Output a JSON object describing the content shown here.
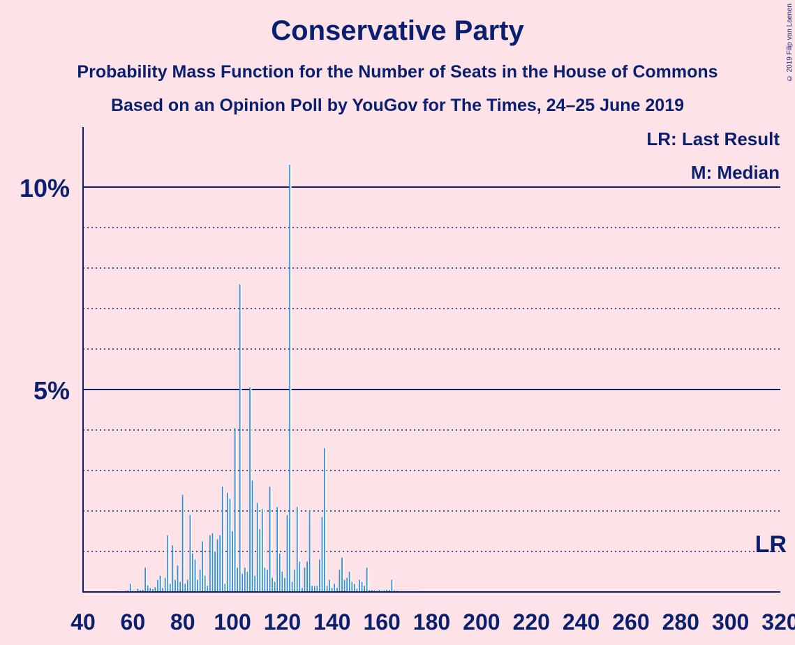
{
  "title": "Conservative Party",
  "subtitle1": "Probability Mass Function for the Number of Seats in the House of Commons",
  "subtitle2": "Based on an Opinion Poll by YouGov for The Times, 24–25 June 2019",
  "copyright": "© 2019 Filip van Laenen",
  "legend": {
    "lr": "LR: Last Result",
    "median": "M: Median"
  },
  "lr_marker": "LR",
  "colors": {
    "background": "#fde3e8",
    "text": "#0a1f6e",
    "bar": "#2f8fd6"
  },
  "chart_data": {
    "type": "bar",
    "title": "Conservative Party",
    "xlabel": "",
    "ylabel": "",
    "xlim": [
      40,
      320
    ],
    "ylim": [
      0,
      11.5
    ],
    "x_ticks": [
      40,
      60,
      80,
      100,
      120,
      140,
      160,
      180,
      200,
      220,
      240,
      260,
      280,
      300,
      320
    ],
    "y_ticks": [
      {
        "value": 5,
        "label": "5%"
      },
      {
        "value": 10,
        "label": "10%"
      }
    ],
    "gridlines_dotted": [
      1,
      2,
      3,
      4,
      6,
      7,
      8,
      9
    ],
    "gridlines_solid": [
      5,
      10
    ],
    "last_result_line": 1,
    "points": [
      [
        55,
        0.02
      ],
      [
        56,
        0.02
      ],
      [
        57,
        0.03
      ],
      [
        58,
        0.04
      ],
      [
        59,
        0.2
      ],
      [
        60,
        0.03
      ],
      [
        61,
        0.02
      ],
      [
        62,
        0.08
      ],
      [
        63,
        0.05
      ],
      [
        64,
        0.06
      ],
      [
        65,
        0.6
      ],
      [
        66,
        0.16
      ],
      [
        67,
        0.1
      ],
      [
        68,
        0.07
      ],
      [
        69,
        0.12
      ],
      [
        70,
        0.3
      ],
      [
        71,
        0.4
      ],
      [
        72,
        0.1
      ],
      [
        73,
        0.35
      ],
      [
        74,
        1.4
      ],
      [
        75,
        0.2
      ],
      [
        76,
        1.15
      ],
      [
        77,
        0.3
      ],
      [
        78,
        0.65
      ],
      [
        79,
        0.25
      ],
      [
        80,
        2.4
      ],
      [
        81,
        0.2
      ],
      [
        82,
        0.3
      ],
      [
        83,
        1.9
      ],
      [
        84,
        0.95
      ],
      [
        85,
        0.8
      ],
      [
        86,
        0.3
      ],
      [
        87,
        0.55
      ],
      [
        88,
        1.25
      ],
      [
        89,
        0.4
      ],
      [
        90,
        0.15
      ],
      [
        91,
        1.4
      ],
      [
        92,
        1.45
      ],
      [
        93,
        1.0
      ],
      [
        94,
        1.3
      ],
      [
        95,
        1.4
      ],
      [
        96,
        2.6
      ],
      [
        97,
        0.2
      ],
      [
        98,
        2.45
      ],
      [
        99,
        2.3
      ],
      [
        100,
        1.5
      ],
      [
        101,
        4.05
      ],
      [
        102,
        0.6
      ],
      [
        103,
        7.6
      ],
      [
        104,
        0.45
      ],
      [
        105,
        0.6
      ],
      [
        106,
        0.5
      ],
      [
        107,
        5.05
      ],
      [
        108,
        2.75
      ],
      [
        109,
        0.4
      ],
      [
        110,
        2.2
      ],
      [
        111,
        1.55
      ],
      [
        112,
        2.05
      ],
      [
        113,
        0.6
      ],
      [
        114,
        0.55
      ],
      [
        115,
        2.6
      ],
      [
        116,
        0.35
      ],
      [
        117,
        0.25
      ],
      [
        118,
        2.1
      ],
      [
        119,
        0.95
      ],
      [
        120,
        0.5
      ],
      [
        121,
        0.35
      ],
      [
        122,
        1.9
      ],
      [
        123,
        10.55
      ],
      [
        124,
        0.25
      ],
      [
        125,
        0.55
      ],
      [
        126,
        2.1
      ],
      [
        127,
        0.75
      ],
      [
        128,
        0.1
      ],
      [
        129,
        0.6
      ],
      [
        130,
        0.75
      ],
      [
        131,
        2.0
      ],
      [
        132,
        0.15
      ],
      [
        133,
        0.15
      ],
      [
        134,
        0.15
      ],
      [
        135,
        0.8
      ],
      [
        136,
        1.85
      ],
      [
        137,
        3.55
      ],
      [
        138,
        0.15
      ],
      [
        139,
        0.3
      ],
      [
        140,
        0.1
      ],
      [
        141,
        0.2
      ],
      [
        142,
        0.1
      ],
      [
        143,
        0.55
      ],
      [
        144,
        0.85
      ],
      [
        145,
        0.3
      ],
      [
        146,
        0.35
      ],
      [
        147,
        0.5
      ],
      [
        148,
        0.25
      ],
      [
        149,
        0.2
      ],
      [
        150,
        0.08
      ],
      [
        151,
        0.3
      ],
      [
        152,
        0.25
      ],
      [
        153,
        0.15
      ],
      [
        154,
        0.6
      ],
      [
        155,
        0.05
      ],
      [
        156,
        0.05
      ],
      [
        157,
        0.04
      ],
      [
        158,
        0.03
      ],
      [
        159,
        0.05
      ],
      [
        160,
        0.03
      ],
      [
        161,
        0.04
      ],
      [
        162,
        0.06
      ],
      [
        163,
        0.05
      ],
      [
        164,
        0.3
      ],
      [
        165,
        0.04
      ],
      [
        166,
        0.03
      ],
      [
        167,
        0.02
      ],
      [
        168,
        0.02
      ],
      [
        169,
        0.02
      ],
      [
        170,
        0.02
      ],
      [
        171,
        0.02
      ],
      [
        172,
        0.02
      ],
      [
        173,
        0.02
      ],
      [
        174,
        0.02
      ]
    ]
  }
}
